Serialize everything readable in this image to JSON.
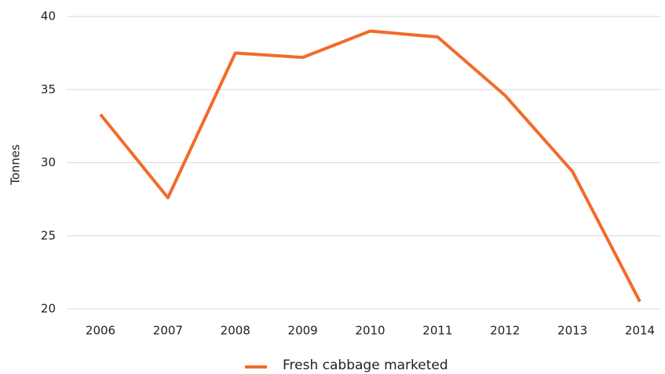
{
  "chart_data": {
    "type": "line",
    "y_label": "Tonnes",
    "categories": [
      "2006",
      "2007",
      "2008",
      "2009",
      "2010",
      "2011",
      "2012",
      "2013",
      "2014"
    ],
    "series": [
      {
        "name": "Fresh cabbage marketed",
        "color": "#f26b2a",
        "values": [
          33.3,
          27.6,
          37.5,
          37.2,
          39.0,
          38.6,
          34.6,
          29.4,
          20.5
        ]
      }
    ],
    "ylim": [
      20,
      40
    ],
    "yticks": [
      20,
      25,
      30,
      35,
      40
    ],
    "grid": true,
    "legend": "bottom"
  }
}
